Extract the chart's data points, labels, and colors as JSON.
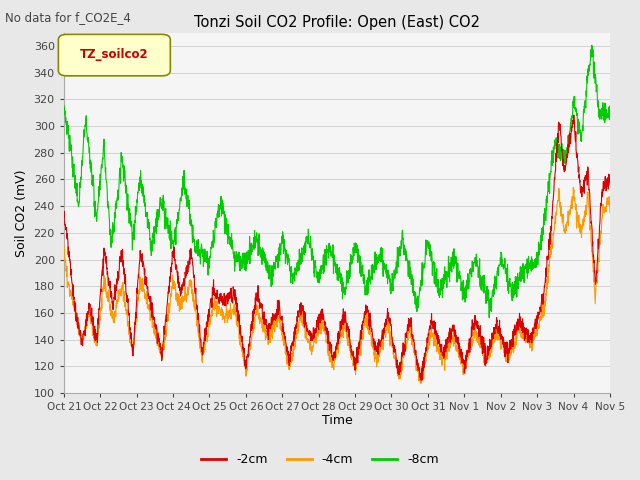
{
  "title": "Tonzi Soil CO2 Profile: Open (East) CO2",
  "subtitle": "No data for f_CO2E_4",
  "ylabel": "Soil CO2 (mV)",
  "xlabel": "Time",
  "legend_title": "TZ_soilco2",
  "series_labels": [
    "-2cm",
    "-4cm",
    "-8cm"
  ],
  "series_colors": [
    "#dd0000",
    "#ff9900",
    "#00cc00"
  ],
  "ylim": [
    100,
    370
  ],
  "yticks": [
    100,
    120,
    140,
    160,
    180,
    200,
    220,
    240,
    260,
    280,
    300,
    320,
    340,
    360
  ],
  "xtick_labels": [
    "Oct 21",
    "Oct 22",
    "Oct 23",
    "Oct 24",
    "Oct 25",
    "Oct 26",
    "Oct 27",
    "Oct 28",
    "Oct 29",
    "Oct 30",
    "Oct 31",
    "Nov 1",
    "Nov 2",
    "Nov 3",
    "Nov 4",
    "Nov 5"
  ],
  "bg_color": "#e8e8e8",
  "plot_bg_color": "#f5f5f5",
  "grid_color": "#cccccc"
}
